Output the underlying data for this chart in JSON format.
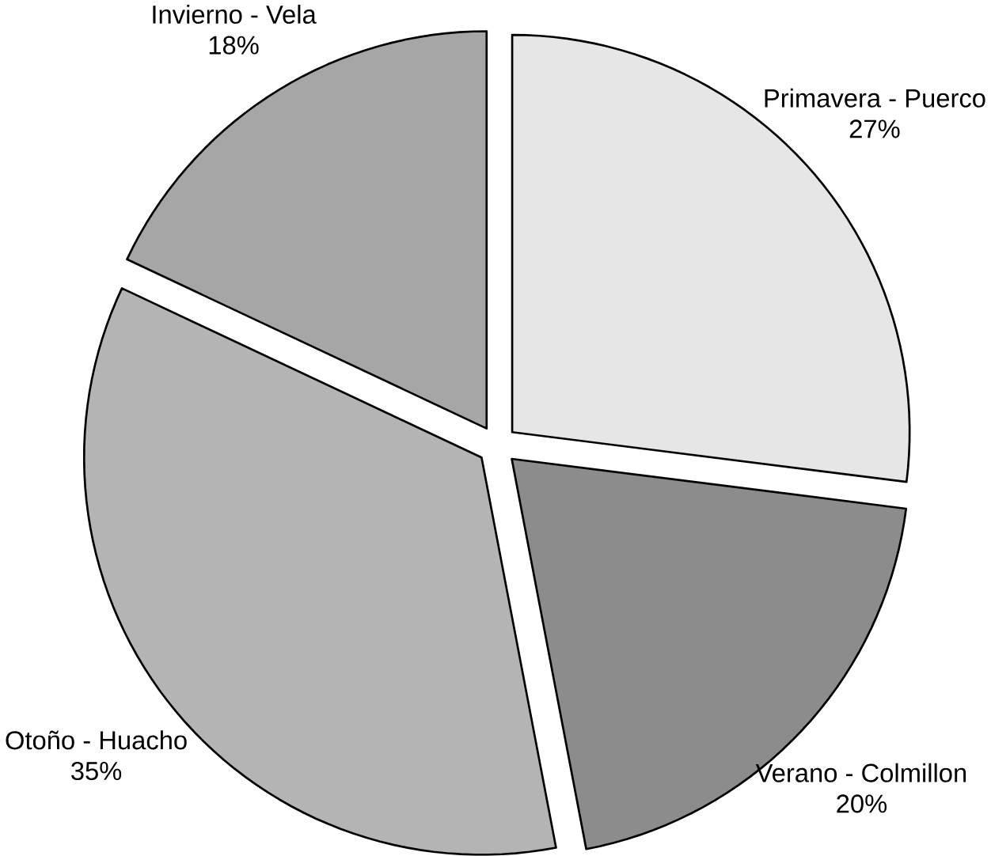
{
  "chart_data": {
    "type": "pie",
    "categories": [
      "Primavera - Puerco",
      "Verano - Colmillon",
      "Otoño - Huacho",
      "Invierno - Vela"
    ],
    "values": [
      27,
      20,
      35,
      18
    ],
    "value_labels": [
      "27%",
      "20%",
      "35%",
      "18%"
    ],
    "colors": [
      "#e6e6e6",
      "#8c8c8c",
      "#b4b4b4",
      "#a6a6a6"
    ]
  }
}
